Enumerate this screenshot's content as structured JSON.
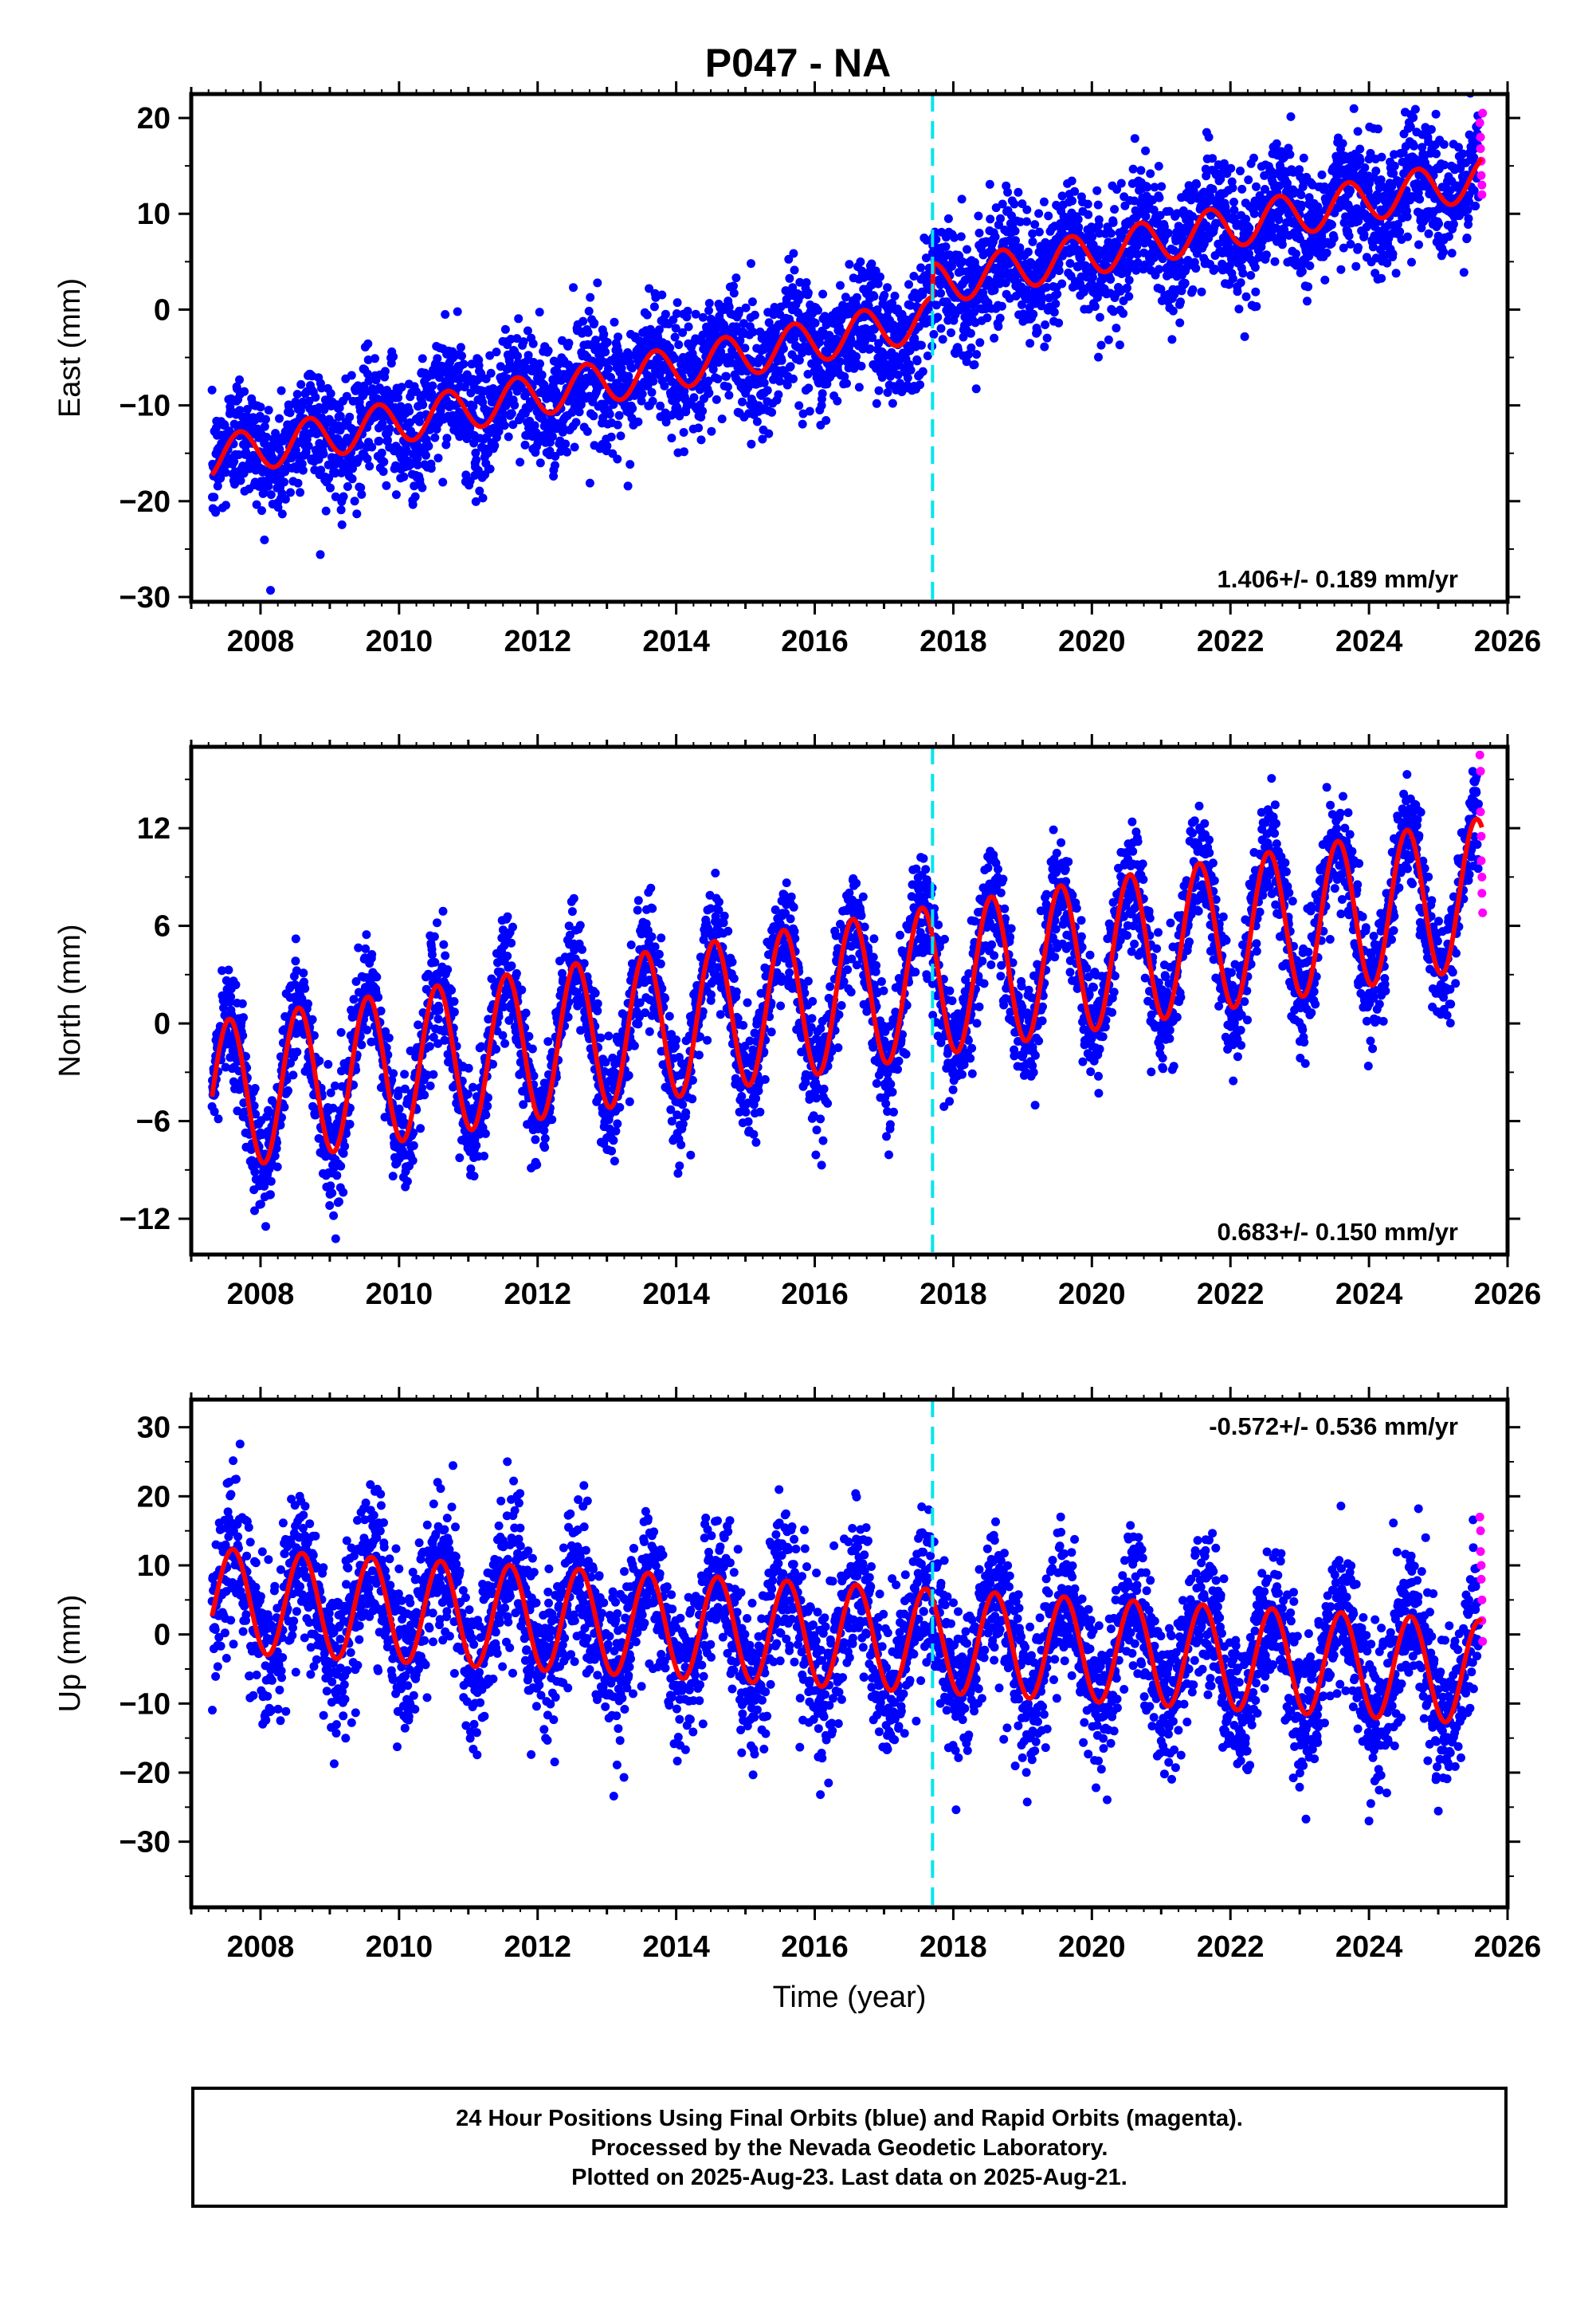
{
  "title": "P047 - NA",
  "colors": {
    "final_orbits": "#0000ff",
    "rapid_orbits": "#ff00ff",
    "model": "#ff0000",
    "equipment_change": "#00e5ee",
    "frame": "#000000"
  },
  "x_axis": {
    "label": "Time (year)",
    "range": [
      2007.0,
      2026.0
    ],
    "ticks": [
      "2008",
      "2010",
      "2012",
      "2014",
      "2016",
      "2018",
      "2020",
      "2022",
      "2024",
      "2026"
    ],
    "tick_values": [
      2008,
      2010,
      2012,
      2014,
      2016,
      2018,
      2020,
      2022,
      2024,
      2026
    ]
  },
  "equipment_change_year": 2017.7,
  "footer": {
    "line1": "24 Hour Positions Using Final Orbits (blue) and Rapid Orbits (magenta).",
    "line2": "Processed by the Nevada Geodetic Laboratory.",
    "line3": "Plotted on 2025-Aug-23. Last data on 2025-Aug-21."
  },
  "chart_data": [
    {
      "type": "scatter",
      "component": "East",
      "ylabel": "East (mm)",
      "ylim": [
        -30.5,
        22.5
      ],
      "yticks": [
        20,
        10,
        0,
        -10,
        -20,
        -30
      ],
      "ytick_labels": [
        "20",
        "10",
        "0",
        "−10",
        "−20",
        "−30"
      ],
      "rate_label": "1.406+/- 0.189 mm/yr",
      "rate_position": "bottom-right",
      "model": {
        "start_year": 2007.3,
        "end_year": 2025.63,
        "offset_at_start": -15.5,
        "velocity_mm_per_yr": 1.406,
        "seasonal_amplitude": 2.2,
        "peak_phase_year": 0.7,
        "step_year": 2017.7,
        "step_mm": 3.5,
        "scatter_sd": 3.2
      },
      "final_series_end_year": 2025.58,
      "rapid_points": [
        {
          "x": 2025.6,
          "y": 19.5
        },
        {
          "x": 2025.61,
          "y": 18.0
        },
        {
          "x": 2025.61,
          "y": 16.8
        },
        {
          "x": 2025.62,
          "y": 15.5
        },
        {
          "x": 2025.62,
          "y": 14.0
        },
        {
          "x": 2025.63,
          "y": 13.0
        },
        {
          "x": 2025.63,
          "y": 12.0
        },
        {
          "x": 2025.64,
          "y": 20.5
        }
      ]
    },
    {
      "type": "scatter",
      "component": "North",
      "ylabel": "North (mm)",
      "ylim": [
        -14.2,
        17.0
      ],
      "yticks": [
        12,
        6,
        0,
        -6,
        -12
      ],
      "ytick_labels": [
        "12",
        "6",
        "0",
        "−6",
        "−12"
      ],
      "rate_label": "0.683+/- 0.150 mm/yr",
      "rate_position": "bottom-right",
      "model": {
        "start_year": 2007.3,
        "end_year": 2025.63,
        "offset_at_start": -4.5,
        "velocity_mm_per_yr": 0.683,
        "seasonal_amplitude": 4.6,
        "peak_phase_year": 0.55,
        "step_year": 2017.7,
        "step_mm": 0.0,
        "scatter_sd": 1.7
      },
      "final_series_end_year": 2025.58,
      "rapid_points": [
        {
          "x": 2025.6,
          "y": 16.5
        },
        {
          "x": 2025.61,
          "y": 15.5
        },
        {
          "x": 2025.61,
          "y": 13.0
        },
        {
          "x": 2025.62,
          "y": 11.5
        },
        {
          "x": 2025.62,
          "y": 10.0
        },
        {
          "x": 2025.63,
          "y": 9.0
        },
        {
          "x": 2025.63,
          "y": 8.0
        },
        {
          "x": 2025.64,
          "y": 6.8
        }
      ]
    },
    {
      "type": "scatter",
      "component": "Up",
      "ylabel": "Up (mm)",
      "ylim": [
        -39.5,
        34.0
      ],
      "yticks": [
        30,
        20,
        10,
        0,
        -10,
        -20,
        -30
      ],
      "ytick_labels": [
        "30",
        "20",
        "10",
        "0",
        "−10",
        "−20",
        "−30"
      ],
      "rate_label": "-0.572+/- 0.536 mm/yr",
      "rate_position": "top-right",
      "model": {
        "start_year": 2007.3,
        "end_year": 2025.63,
        "offset_at_start": 5.0,
        "velocity_mm_per_yr": -0.572,
        "seasonal_amplitude": 7.5,
        "peak_phase_year": 0.6,
        "step_year": 2017.7,
        "step_mm": 0.0,
        "scatter_sd": 5.5
      },
      "final_series_end_year": 2025.58,
      "rapid_points": [
        {
          "x": 2025.6,
          "y": 17.0
        },
        {
          "x": 2025.61,
          "y": 15.0
        },
        {
          "x": 2025.61,
          "y": 12.0
        },
        {
          "x": 2025.62,
          "y": 10.0
        },
        {
          "x": 2025.62,
          "y": 8.0
        },
        {
          "x": 2025.63,
          "y": 5.0
        },
        {
          "x": 2025.63,
          "y": 2.0
        },
        {
          "x": 2025.64,
          "y": -1.0
        }
      ]
    }
  ]
}
